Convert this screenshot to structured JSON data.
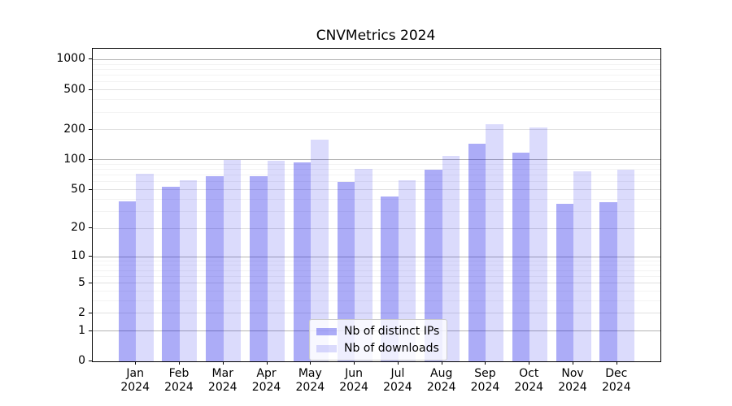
{
  "chart_data": {
    "type": "bar",
    "title": "CNVMetrics 2024",
    "yscale": "log1p",
    "grid": true,
    "legend_position": "lower center",
    "ylim": [
      0,
      1273
    ],
    "yticks": [
      0,
      1,
      2,
      5,
      10,
      20,
      50,
      100,
      200,
      500,
      1000
    ],
    "categories": [
      {
        "month": "Jan",
        "year": "2024"
      },
      {
        "month": "Feb",
        "year": "2024"
      },
      {
        "month": "Mar",
        "year": "2024"
      },
      {
        "month": "Apr",
        "year": "2024"
      },
      {
        "month": "May",
        "year": "2024"
      },
      {
        "month": "Jun",
        "year": "2024"
      },
      {
        "month": "Jul",
        "year": "2024"
      },
      {
        "month": "Aug",
        "year": "2024"
      },
      {
        "month": "Sep",
        "year": "2024"
      },
      {
        "month": "Oct",
        "year": "2024"
      },
      {
        "month": "Nov",
        "year": "2024"
      },
      {
        "month": "Dec",
        "year": "2024"
      }
    ],
    "series": [
      {
        "name": "Nb of distinct IPs",
        "color": "#0303e7",
        "alpha": 0.33,
        "values": [
          38,
          54,
          69,
          69,
          95,
          60,
          43,
          79,
          146,
          117,
          36,
          37
        ]
      },
      {
        "name": "Nb of downloads",
        "color": "#0303e7",
        "alpha": 0.14,
        "values": [
          73,
          62,
          99,
          97,
          158,
          81,
          62,
          110,
          228,
          210,
          76,
          79
        ]
      }
    ],
    "grid_colors": {
      "strong": "#b3b3b3",
      "weak": "#e1e1e1",
      "minor": "#f3f3f3"
    }
  }
}
